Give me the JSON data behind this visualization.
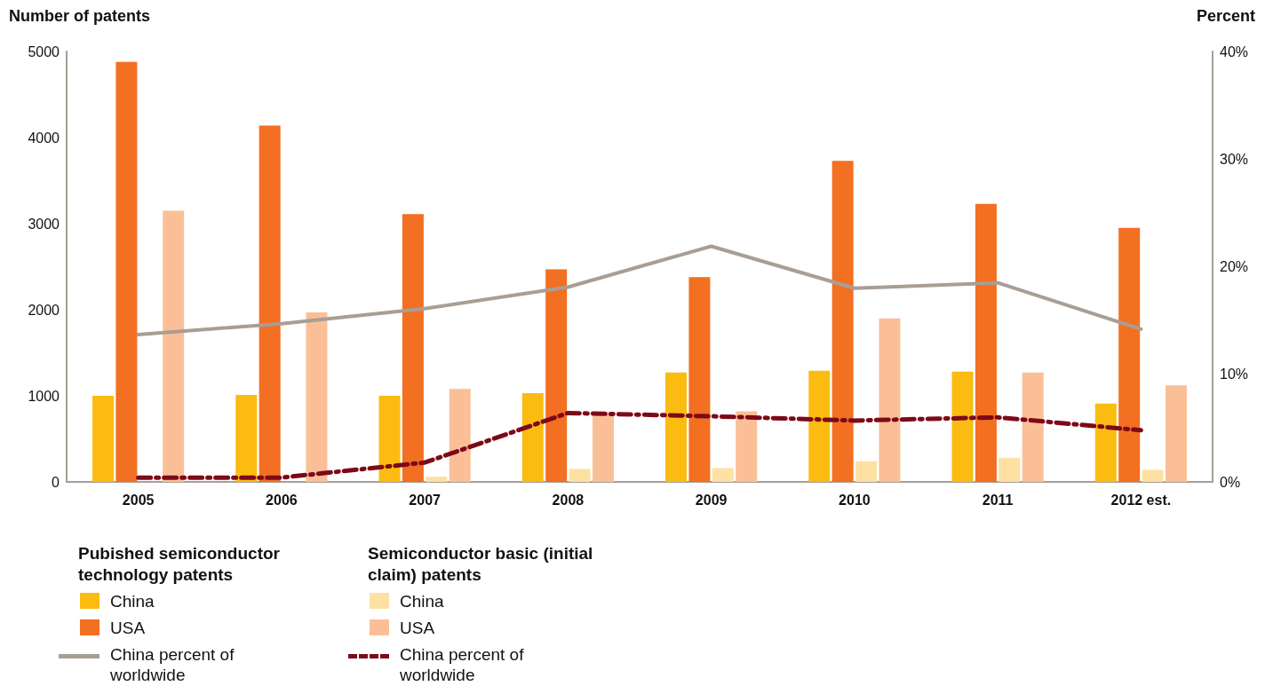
{
  "chart_data": {
    "type": "bar",
    "ylabel": "Number of patents",
    "y2label": "Percent",
    "categories": [
      "2005",
      "2006",
      "2007",
      "2008",
      "2009",
      "2010",
      "2011",
      "2012 est."
    ],
    "legend_title": [
      "Pubished semiconductor technology patents",
      "Semiconductor basic (initial claim) patents"
    ],
    "series": [
      {
        "name": "China",
        "color": "#fbbb10",
        "values": [
          1000,
          1010,
          1000,
          1030,
          1270,
          1290,
          1280,
          910
        ]
      },
      {
        "name": "USA",
        "color": "#f36f21",
        "values": [
          4880,
          4140,
          3110,
          2470,
          2380,
          3730,
          3230,
          2950
        ]
      },
      {
        "name": "China percent of worldwide",
        "type": "line",
        "axis": "y2",
        "color": "#a89e94",
        "line_style": "solid",
        "values": [
          13.7,
          14.7,
          16.1,
          18.1,
          21.9,
          18.0,
          18.5,
          14.2
        ]
      },
      {
        "name": "China",
        "color": "#fde0a2",
        "values": [
          0,
          0,
          60,
          150,
          160,
          240,
          280,
          140
        ]
      },
      {
        "name": "USA",
        "color": "#fbbf98",
        "values": [
          3150,
          1970,
          1080,
          800,
          820,
          1900,
          1270,
          1120
        ]
      },
      {
        "name": "China percent of worldwide",
        "type": "line",
        "axis": "y2",
        "color": "#7c0a18",
        "line_style": "dashed",
        "values": [
          0.4,
          0.4,
          1.8,
          6.4,
          6.1,
          5.7,
          6.0,
          4.8
        ]
      }
    ],
    "ylim": [
      0,
      5000
    ],
    "yticks": [
      0,
      1000,
      2000,
      3000,
      4000,
      5000
    ],
    "y2lim": [
      0,
      40
    ],
    "y2ticks": [
      {
        "value": 0,
        "label": "0%"
      },
      {
        "value": 10,
        "label": "10%"
      },
      {
        "value": 20,
        "label": "20%"
      },
      {
        "value": 30,
        "label": "30%"
      },
      {
        "value": 40,
        "label": "40%"
      }
    ],
    "grid": false,
    "legend": "bottom left",
    "marker": "none"
  }
}
